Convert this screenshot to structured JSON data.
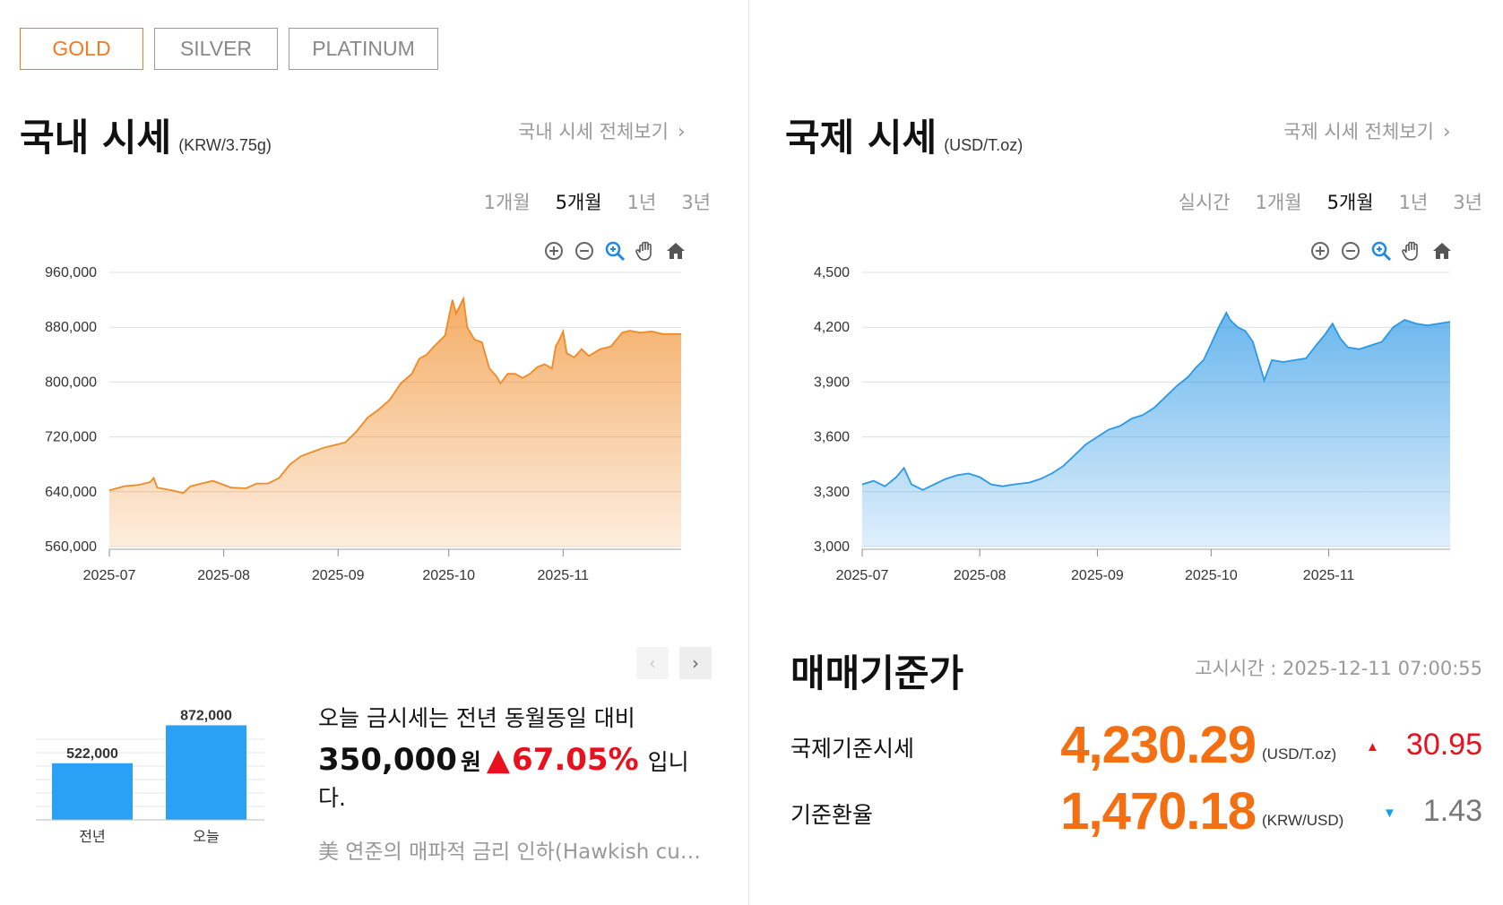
{
  "metal_tabs": [
    {
      "label": "GOLD",
      "active": true
    },
    {
      "label": "SILVER",
      "active": false
    },
    {
      "label": "PLATINUM",
      "active": false
    }
  ],
  "domestic": {
    "title": "국내 시세",
    "unit": "(KRW/3.75g)",
    "view_all": "국내 시세 전체보기",
    "periods": [
      "1개월",
      "5개월",
      "1년",
      "3년"
    ],
    "active_period": "5개월"
  },
  "international": {
    "title": "국제 시세",
    "unit": "(USD/T.oz)",
    "view_all": "국제 시세 전체보기",
    "periods": [
      "실시간",
      "1개월",
      "5개월",
      "1년",
      "3년"
    ],
    "active_period": "5개월"
  },
  "colors": {
    "accent": "#f07c20",
    "domestic_line": "#f08a24",
    "international_line": "#2b98e6",
    "bar": "#2aa1f5",
    "up": "#e8111d",
    "down": "#1a9de8"
  },
  "chart_data": [
    {
      "type": "area",
      "ylim": [
        560000,
        960000
      ],
      "yticks": [
        "960,000",
        "880,000",
        "800,000",
        "720,000",
        "640,000",
        "560,000"
      ],
      "ytick_values": [
        960000,
        880000,
        800000,
        720000,
        640000,
        560000
      ],
      "xticks": [
        "2025-07",
        "2025-08",
        "2025-09",
        "2025-10",
        "2025-11"
      ],
      "xtick_positions": [
        0,
        31,
        62,
        92,
        123
      ],
      "x_span": 155,
      "points": [
        [
          0,
          642000
        ],
        [
          4,
          648000
        ],
        [
          8,
          650000
        ],
        [
          11,
          654000
        ],
        [
          12,
          660000
        ],
        [
          13,
          646000
        ],
        [
          17,
          642000
        ],
        [
          20,
          638000
        ],
        [
          22,
          648000
        ],
        [
          25,
          652000
        ],
        [
          28,
          656000
        ],
        [
          31,
          650000
        ],
        [
          33,
          646000
        ],
        [
          37,
          645000
        ],
        [
          40,
          652000
        ],
        [
          43,
          652000
        ],
        [
          46,
          660000
        ],
        [
          49,
          680000
        ],
        [
          52,
          692000
        ],
        [
          55,
          698000
        ],
        [
          58,
          704000
        ],
        [
          61,
          708000
        ],
        [
          64,
          712000
        ],
        [
          67,
          728000
        ],
        [
          70,
          748000
        ],
        [
          73,
          760000
        ],
        [
          76,
          774000
        ],
        [
          79,
          798000
        ],
        [
          82,
          812000
        ],
        [
          84,
          834000
        ],
        [
          86,
          840000
        ],
        [
          88,
          852000
        ],
        [
          91,
          868000
        ],
        [
          93,
          920000
        ],
        [
          94,
          900000
        ],
        [
          96,
          922000
        ],
        [
          97,
          880000
        ],
        [
          99,
          862000
        ],
        [
          101,
          858000
        ],
        [
          103,
          820000
        ],
        [
          105,
          808000
        ],
        [
          106,
          798000
        ],
        [
          108,
          812000
        ],
        [
          110,
          812000
        ],
        [
          112,
          806000
        ],
        [
          114,
          812000
        ],
        [
          116,
          822000
        ],
        [
          118,
          826000
        ],
        [
          120,
          820000
        ],
        [
          121,
          852000
        ],
        [
          122,
          862000
        ],
        [
          123,
          874000
        ],
        [
          124,
          842000
        ],
        [
          126,
          836000
        ],
        [
          128,
          848000
        ],
        [
          130,
          838000
        ],
        [
          133,
          848000
        ],
        [
          136,
          852000
        ],
        [
          139,
          872000
        ],
        [
          141,
          875000
        ],
        [
          144,
          872000
        ],
        [
          147,
          874000
        ],
        [
          150,
          870000
        ],
        [
          153,
          870000
        ],
        [
          155,
          870000
        ]
      ]
    },
    {
      "type": "area",
      "ylim": [
        3000,
        4500
      ],
      "yticks": [
        "4,500",
        "4,200",
        "3,900",
        "3,600",
        "3,300",
        "3,000"
      ],
      "ytick_values": [
        4500,
        4200,
        3900,
        3600,
        3300,
        3000
      ],
      "xticks": [
        "2025-07",
        "2025-08",
        "2025-09",
        "2025-10",
        "2025-11"
      ],
      "xtick_positions": [
        0,
        31,
        62,
        92,
        123
      ],
      "x_span": 155,
      "points": [
        [
          0,
          3340
        ],
        [
          3,
          3360
        ],
        [
          6,
          3330
        ],
        [
          9,
          3380
        ],
        [
          11,
          3430
        ],
        [
          13,
          3340
        ],
        [
          16,
          3310
        ],
        [
          19,
          3340
        ],
        [
          22,
          3370
        ],
        [
          25,
          3390
        ],
        [
          28,
          3400
        ],
        [
          31,
          3380
        ],
        [
          34,
          3340
        ],
        [
          37,
          3330
        ],
        [
          40,
          3340
        ],
        [
          44,
          3350
        ],
        [
          47,
          3370
        ],
        [
          50,
          3400
        ],
        [
          53,
          3440
        ],
        [
          56,
          3500
        ],
        [
          59,
          3560
        ],
        [
          62,
          3600
        ],
        [
          65,
          3640
        ],
        [
          68,
          3660
        ],
        [
          71,
          3700
        ],
        [
          74,
          3720
        ],
        [
          77,
          3760
        ],
        [
          80,
          3820
        ],
        [
          83,
          3880
        ],
        [
          86,
          3930
        ],
        [
          88,
          3980
        ],
        [
          90,
          4020
        ],
        [
          92,
          4110
        ],
        [
          94,
          4200
        ],
        [
          96,
          4280
        ],
        [
          97,
          4240
        ],
        [
          99,
          4200
        ],
        [
          101,
          4180
        ],
        [
          103,
          4120
        ],
        [
          105,
          3980
        ],
        [
          106,
          3910
        ],
        [
          108,
          4020
        ],
        [
          111,
          4010
        ],
        [
          114,
          4020
        ],
        [
          117,
          4030
        ],
        [
          120,
          4110
        ],
        [
          122,
          4160
        ],
        [
          124,
          4220
        ],
        [
          126,
          4140
        ],
        [
          128,
          4090
        ],
        [
          131,
          4080
        ],
        [
          134,
          4100
        ],
        [
          137,
          4120
        ],
        [
          140,
          4200
        ],
        [
          143,
          4240
        ],
        [
          146,
          4220
        ],
        [
          149,
          4210
        ],
        [
          152,
          4220
        ],
        [
          155,
          4230
        ]
      ]
    },
    {
      "type": "bar",
      "categories": [
        "전년",
        "오늘"
      ],
      "values": [
        522000,
        872000
      ],
      "value_labels": [
        "522,000",
        "872,000"
      ],
      "ylim": [
        0,
        950000
      ]
    }
  ],
  "pager": {
    "prev": "‹",
    "next": "›"
  },
  "summary": {
    "line1": "오늘 금시세는 전년 동월동일 대비",
    "amount": "350,000",
    "won": "원",
    "arrow": "▲",
    "pct": "67.05%",
    "tail": "입니다.",
    "news": "美 연준의 매파적 금리 인하(Hawkish cut) 기대"
  },
  "rates": {
    "title": "매매기준가",
    "notice": "고시시간 : 2025-12-11 07:00:55",
    "rows": [
      {
        "label": "국제기준시세",
        "value": "4,230.29",
        "unit": "(USD/T.oz)",
        "arrow": "▲",
        "change": "30.95",
        "direction": "up"
      },
      {
        "label": "기준환율",
        "value": "1,470.18",
        "unit": "(KRW/USD)",
        "arrow": "▼",
        "change": "1.43",
        "direction": "down"
      }
    ]
  }
}
